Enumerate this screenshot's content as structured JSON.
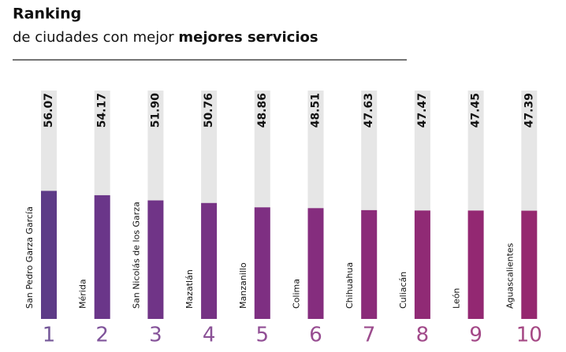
{
  "chart_data": {
    "type": "bar",
    "title": "Ranking",
    "subtitle": "de ciudades con mejor",
    "subtitle_bold": "mejores servicios",
    "categories": [
      "San Pedro Garza García",
      "Mérida",
      "San Nicolás de los Garza",
      "Mazatlán",
      "Manzanillo",
      "Colima",
      "Chihuahua",
      "Culiacán",
      "León",
      "Aguascalientes"
    ],
    "ranks": [
      1,
      2,
      3,
      4,
      5,
      6,
      7,
      8,
      9,
      10
    ],
    "values": [
      56.07,
      54.17,
      51.9,
      50.76,
      48.86,
      48.51,
      47.63,
      47.47,
      47.45,
      47.39
    ],
    "value_labels": [
      "56.07",
      "54.17",
      "51.90",
      "50.76",
      "48.86",
      "48.51",
      "47.63",
      "47.47",
      "47.45",
      "47.39"
    ],
    "colors": [
      "#5d3b87",
      "#6a3689",
      "#703487",
      "#763284",
      "#7e2f82",
      "#852d7e",
      "#8b2b79",
      "#902a75",
      "#932872",
      "#95286f"
    ],
    "track_color": "#e6e6e6",
    "ylim": [
      0,
      100
    ]
  }
}
